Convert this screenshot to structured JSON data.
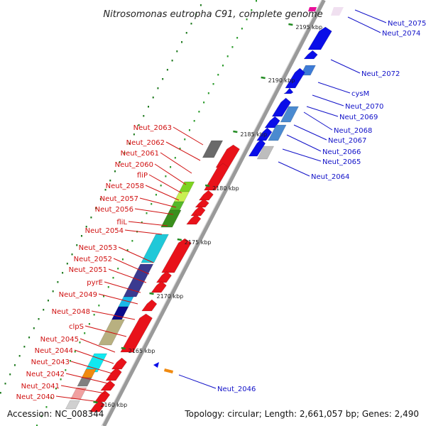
{
  "title": "Nitrosomonas eutropha C91, complete genome",
  "footer": {
    "accession": "Accession: NC_008344",
    "summary": "Topology: circular; Length: 2,661,057 bp; Genes: 2,490"
  },
  "colors": {
    "forward_strand": "#0a0ee8",
    "reverse_strand": "#e8121a",
    "backbone": "#9a9a9a",
    "tick": "#228b22",
    "label_forward": "#1010c8",
    "label_reverse": "#d01010"
  },
  "ticks": [
    "2195 kbp",
    "2190 kbp",
    "2185 kbp",
    "2180 kbp",
    "2175 kbp",
    "2170 kbp",
    "2165 kbp",
    "2160 kbp"
  ],
  "labels_forward": [
    "Neut_2075",
    "Neut_2074",
    "Neut_2072",
    "cysM",
    "Neut_2070",
    "Neut_2069",
    "Neut_2068",
    "Neut_2067",
    "Neut_2066",
    "Neut_2065",
    "Neut_2064",
    "Neut_2046"
  ],
  "labels_reverse": [
    "Neut_2063",
    "Neut_2062",
    "Neut_2061",
    "Neut_2060",
    "fliP",
    "Neut_2058",
    "Neut_2057",
    "Neut_2056",
    "fliL",
    "Neut_2054",
    "Neut_2053",
    "Neut_2052",
    "Neut_2051",
    "pyrE",
    "Neut_2049",
    "Neut_2048",
    "clpS",
    "Neut_2045",
    "Neut_2044",
    "Neut_2043",
    "Neut_2042",
    "Neut_2041",
    "Neut_2040"
  ]
}
